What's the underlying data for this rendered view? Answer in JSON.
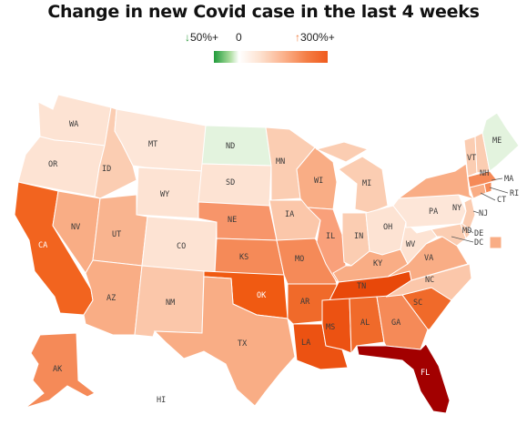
{
  "title": "Change in new Covid case in the last 4 weeks",
  "legend": {
    "low_arrow": "↓",
    "low_label": "50%+",
    "zero_label": "0",
    "high_arrow": "↑",
    "high_label": "300%+"
  },
  "colors": {
    "decline": "#e3f3de",
    "pale": "#fde6d8",
    "light": "#fbcdb2",
    "mid": "#f9ad85",
    "medium_dark": "#f58a58",
    "dark": "#f06a2a",
    "very_dark": "#e84a0c",
    "florida": "#a20000"
  },
  "states": [
    {
      "abbr": "WA",
      "color": "#fde3d3"
    },
    {
      "abbr": "OR",
      "color": "#fde3d3"
    },
    {
      "abbr": "CA",
      "color": "#f2641f"
    },
    {
      "abbr": "NV",
      "color": "#f9ad85"
    },
    {
      "abbr": "ID",
      "color": "#fbcdb2"
    },
    {
      "abbr": "MT",
      "color": "#fde6d8"
    },
    {
      "abbr": "WY",
      "color": "#fde3d3"
    },
    {
      "abbr": "UT",
      "color": "#f9b48f"
    },
    {
      "abbr": "AZ",
      "color": "#f9ad85"
    },
    {
      "abbr": "CO",
      "color": "#fde3d3"
    },
    {
      "abbr": "NM",
      "color": "#fbc7aa"
    },
    {
      "abbr": "ND",
      "color": "#e3f3de"
    },
    {
      "abbr": "SD",
      "color": "#fde3d3"
    },
    {
      "abbr": "NE",
      "color": "#f7956a"
    },
    {
      "abbr": "KS",
      "color": "#f58a58"
    },
    {
      "abbr": "OK",
      "color": "#f05a12"
    },
    {
      "abbr": "TX",
      "color": "#f9ad85"
    },
    {
      "abbr": "MN",
      "color": "#fbcdb2"
    },
    {
      "abbr": "IA",
      "color": "#fbc7aa"
    },
    {
      "abbr": "MO",
      "color": "#f58a58"
    },
    {
      "abbr": "AR",
      "color": "#f06a2a"
    },
    {
      "abbr": "LA",
      "color": "#ec5212"
    },
    {
      "abbr": "WI",
      "color": "#f9ad85"
    },
    {
      "abbr": "IL",
      "color": "#f9a07a"
    },
    {
      "abbr": "MI",
      "color": "#fbcdb2"
    },
    {
      "abbr": "IN",
      "color": "#fbcdb2"
    },
    {
      "abbr": "OH",
      "color": "#fde3d3"
    },
    {
      "abbr": "KY",
      "color": "#f9ad85"
    },
    {
      "abbr": "TN",
      "color": "#e8480a"
    },
    {
      "abbr": "MS",
      "color": "#ec5212"
    },
    {
      "abbr": "AL",
      "color": "#f06a2a"
    },
    {
      "abbr": "GA",
      "color": "#f58a58"
    },
    {
      "abbr": "FL",
      "color": "#a20000"
    },
    {
      "abbr": "SC",
      "color": "#f06a2a"
    },
    {
      "abbr": "NC",
      "color": "#fbc7aa"
    },
    {
      "abbr": "VA",
      "color": "#f9ad85"
    },
    {
      "abbr": "WV",
      "color": "#fde3d3"
    },
    {
      "abbr": "PA",
      "color": "#fde6d8"
    },
    {
      "abbr": "NY",
      "color": "#f9ad85"
    },
    {
      "abbr": "NJ",
      "color": "#fbcdb2"
    },
    {
      "abbr": "DE",
      "color": "#fbcdb2"
    },
    {
      "abbr": "MD",
      "color": "#fbcdb2"
    },
    {
      "abbr": "DC",
      "color": "#f9ad85"
    },
    {
      "abbr": "CT",
      "color": "#f9ad85"
    },
    {
      "abbr": "RI",
      "color": "#f58a58"
    },
    {
      "abbr": "MA",
      "color": "#f58a58"
    },
    {
      "abbr": "VT",
      "color": "#fbcdb2"
    },
    {
      "abbr": "NH",
      "color": "#fbcdb2"
    },
    {
      "abbr": "ME",
      "color": "#e3f3de"
    },
    {
      "abbr": "AK",
      "color": "#f58a58"
    },
    {
      "abbr": "HI",
      "color": "#ffffff"
    }
  ]
}
